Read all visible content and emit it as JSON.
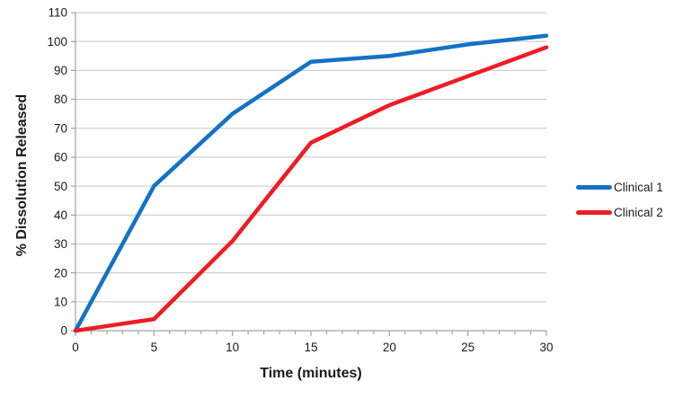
{
  "chart_data": {
    "type": "line",
    "title": "",
    "xlabel": "Time (minutes)",
    "ylabel": "% Dissolution Released",
    "x": [
      0,
      5,
      10,
      15,
      20,
      25,
      30
    ],
    "series": [
      {
        "name": "Clinical 1",
        "color": "#1472C6",
        "values": [
          0,
          50,
          75,
          93,
          95,
          99,
          102
        ]
      },
      {
        "name": "Clinical 2",
        "color": "#EE1C23",
        "values": [
          0,
          4,
          31,
          65,
          78,
          88,
          98
        ]
      }
    ],
    "xlim": [
      0,
      30
    ],
    "ylim": [
      0,
      110
    ],
    "x_ticks": [
      "0",
      "5",
      "10",
      "15",
      "20",
      "25",
      "30"
    ],
    "x_minor_tick_step": 1,
    "y_ticks": [
      "0",
      "10",
      "20",
      "30",
      "40",
      "50",
      "60",
      "70",
      "80",
      "90",
      "100",
      "110"
    ],
    "grid": "horizontal",
    "legend_position": "right"
  },
  "style": {
    "gridline_color": "#C6C6C6",
    "axis_color": "#A3A3A3",
    "tick_label_color": "#1A1A1A",
    "line_width": 4.5
  }
}
